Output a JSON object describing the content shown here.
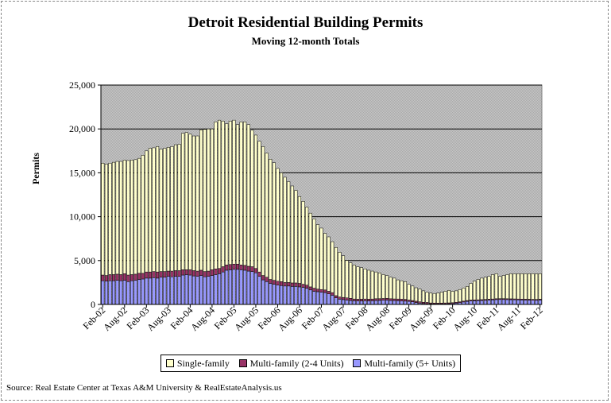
{
  "title": "Detroit Residential Building Permits",
  "subtitle": "Moving 12-month Totals",
  "source": "Source: Real Estate Center at Texas A&M University & RealEstateAnalysis.us",
  "colors": {
    "single": "#ffffcc",
    "multi24": "#993366",
    "multi5": "#9999ff",
    "plot_bg": "#c0c0c0"
  },
  "chart_data": {
    "type": "bar",
    "stacked": true,
    "ylabel": "Permits",
    "ylim": [
      0,
      25000
    ],
    "yticks": [
      "0",
      "5,000",
      "10,000",
      "15,000",
      "20,000",
      "25,000"
    ],
    "grid": true,
    "legend_position": "bottom",
    "x_tick_labels": [
      "Feb-02",
      "Aug-02",
      "Feb-03",
      "Aug-03",
      "Feb-04",
      "Aug-04",
      "Feb-05",
      "Aug-05",
      "Feb-06",
      "Aug-06",
      "Feb-07",
      "Aug-07",
      "Feb-08",
      "Aug-08",
      "Feb-09",
      "Aug-09",
      "Feb-10",
      "Aug-10",
      "Feb-11",
      "Aug-11",
      "Feb-12"
    ],
    "categories": [
      "Feb-02",
      "Mar-02",
      "Apr-02",
      "May-02",
      "Jun-02",
      "Jul-02",
      "Aug-02",
      "Sep-02",
      "Oct-02",
      "Nov-02",
      "Dec-02",
      "Jan-03",
      "Feb-03",
      "Mar-03",
      "Apr-03",
      "May-03",
      "Jun-03",
      "Jul-03",
      "Aug-03",
      "Sep-03",
      "Oct-03",
      "Nov-03",
      "Dec-03",
      "Jan-04",
      "Feb-04",
      "Mar-04",
      "Apr-04",
      "May-04",
      "Jun-04",
      "Jul-04",
      "Aug-04",
      "Sep-04",
      "Oct-04",
      "Nov-04",
      "Dec-04",
      "Jan-05",
      "Feb-05",
      "Mar-05",
      "Apr-05",
      "May-05",
      "Jun-05",
      "Jul-05",
      "Aug-05",
      "Sep-05",
      "Oct-05",
      "Nov-05",
      "Dec-05",
      "Jan-06",
      "Feb-06",
      "Mar-06",
      "Apr-06",
      "May-06",
      "Jun-06",
      "Jul-06",
      "Aug-06",
      "Sep-06",
      "Oct-06",
      "Nov-06",
      "Dec-06",
      "Jan-07",
      "Feb-07",
      "Mar-07",
      "Apr-07",
      "May-07",
      "Jun-07",
      "Jul-07",
      "Aug-07",
      "Sep-07",
      "Oct-07",
      "Nov-07",
      "Dec-07",
      "Jan-08",
      "Feb-08",
      "Mar-08",
      "Apr-08",
      "May-08",
      "Jun-08",
      "Jul-08",
      "Aug-08",
      "Sep-08",
      "Oct-08",
      "Nov-08",
      "Dec-08",
      "Jan-09",
      "Feb-09",
      "Mar-09",
      "Apr-09",
      "May-09",
      "Jun-09",
      "Jul-09",
      "Aug-09",
      "Sep-09",
      "Oct-09",
      "Nov-09",
      "Dec-09",
      "Jan-10",
      "Feb-10",
      "Mar-10",
      "Apr-10",
      "May-10",
      "Jun-10",
      "Jul-10",
      "Aug-10",
      "Sep-10",
      "Oct-10",
      "Nov-10",
      "Dec-10",
      "Jan-11",
      "Feb-11",
      "Mar-11",
      "Apr-11",
      "May-11",
      "Jun-11",
      "Jul-11",
      "Aug-11",
      "Sep-11",
      "Oct-11",
      "Nov-11",
      "Dec-11",
      "Jan-12",
      "Feb-12"
    ],
    "series": [
      {
        "name": "Multi-family (5+ Units)",
        "values": [
          2700,
          2650,
          2700,
          2700,
          2750,
          2700,
          2750,
          2600,
          2700,
          2750,
          2850,
          2900,
          3000,
          3000,
          3050,
          3000,
          3100,
          3100,
          3200,
          3150,
          3200,
          3200,
          3350,
          3400,
          3350,
          3250,
          3200,
          3300,
          3150,
          3200,
          3300,
          3400,
          3500,
          3700,
          3900,
          3950,
          4000,
          4000,
          3950,
          3900,
          3800,
          3750,
          3600,
          3200,
          2800,
          2600,
          2400,
          2300,
          2200,
          2150,
          2100,
          2100,
          2050,
          2050,
          2000,
          1950,
          1850,
          1650,
          1500,
          1450,
          1400,
          1350,
          1200,
          1050,
          750,
          600,
          550,
          500,
          450,
          420,
          400,
          400,
          420,
          400,
          420,
          450,
          460,
          480,
          500,
          450,
          430,
          420,
          400,
          380,
          350,
          300,
          220,
          150,
          100,
          80,
          70,
          60,
          50,
          60,
          70,
          80,
          100,
          150,
          200,
          280,
          350,
          400,
          420,
          430,
          450,
          470,
          500,
          520,
          550,
          560,
          560,
          550,
          540,
          530,
          520,
          510,
          500,
          490,
          480,
          470,
          500
        ]
      },
      {
        "name": "Multi-family (2-4 Units)",
        "values": [
          650,
          650,
          700,
          700,
          700,
          700,
          750,
          750,
          700,
          700,
          700,
          650,
          700,
          700,
          700,
          700,
          650,
          650,
          600,
          650,
          650,
          650,
          600,
          550,
          600,
          600,
          600,
          600,
          600,
          600,
          650,
          650,
          600,
          600,
          600,
          600,
          600,
          600,
          550,
          550,
          550,
          550,
          500,
          500,
          500,
          500,
          450,
          450,
          450,
          450,
          400,
          400,
          400,
          400,
          400,
          350,
          350,
          350,
          350,
          300,
          300,
          300,
          300,
          300,
          250,
          250,
          250,
          250,
          250,
          200,
          200,
          200,
          200,
          200,
          200,
          200,
          200,
          200,
          200,
          200,
          200,
          200,
          200,
          200,
          150,
          150,
          150,
          150,
          150,
          150,
          100,
          100,
          100,
          100,
          100,
          100,
          100,
          100,
          100,
          100,
          100,
          100,
          100,
          100,
          100,
          100,
          100,
          100,
          100,
          100,
          100,
          100,
          100,
          100,
          100,
          100,
          100,
          100,
          100,
          100,
          100
        ]
      },
      {
        "name": "Single-family",
        "values": [
          12750,
          12700,
          12700,
          12800,
          12850,
          12900,
          12950,
          13050,
          13050,
          13050,
          13100,
          13450,
          13800,
          14100,
          14100,
          14300,
          13950,
          14050,
          14100,
          14200,
          14350,
          14400,
          15550,
          15650,
          15450,
          15350,
          15400,
          16000,
          16200,
          16200,
          16050,
          16750,
          16900,
          16600,
          16100,
          16350,
          16400,
          15900,
          16300,
          16350,
          16150,
          15550,
          15200,
          14900,
          14700,
          14150,
          13700,
          13400,
          12850,
          12400,
          12000,
          11500,
          11050,
          10550,
          9900,
          9450,
          8900,
          8400,
          7900,
          7350,
          7000,
          6450,
          6200,
          5800,
          5500,
          5100,
          4750,
          4250,
          4050,
          3880,
          3700,
          3600,
          3430,
          3300,
          3180,
          3050,
          2940,
          2720,
          2600,
          2450,
          2370,
          2180,
          2100,
          2020,
          1800,
          1650,
          1530,
          1450,
          1300,
          1170,
          1130,
          1090,
          1150,
          1240,
          1330,
          1420,
          1300,
          1300,
          1400,
          1500,
          1600,
          1900,
          2130,
          2320,
          2450,
          2530,
          2600,
          2780,
          2850,
          2540,
          2640,
          2750,
          2860,
          2870,
          2880,
          2890,
          2900,
          2910,
          2920,
          2930,
          2900
        ]
      }
    ]
  },
  "legend": {
    "single": "Single-family",
    "multi24": "Multi-family (2-4 Units)",
    "multi5": "Multi-family (5+ Units)"
  }
}
